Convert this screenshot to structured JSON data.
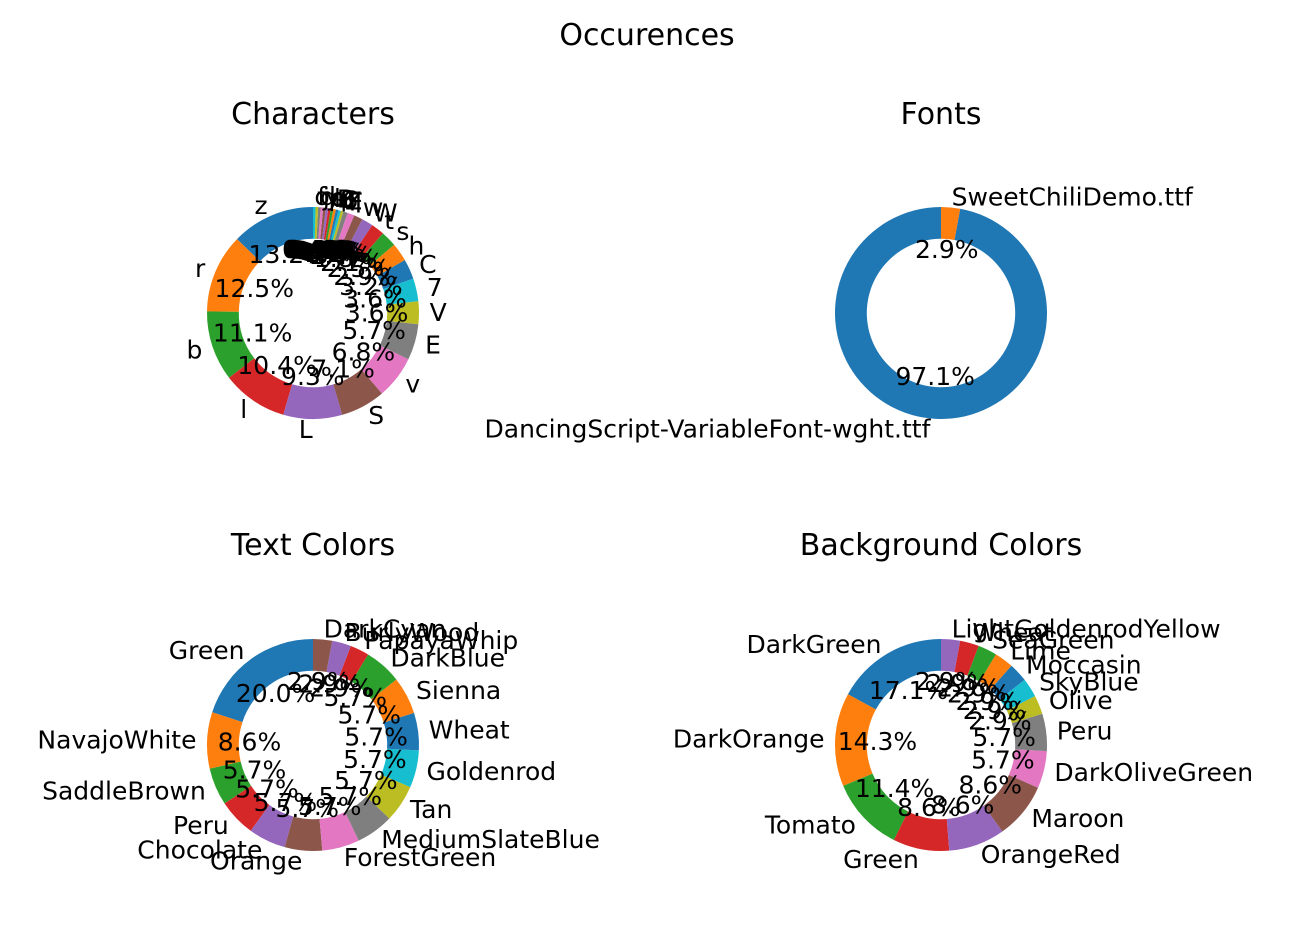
{
  "title": "Occurences",
  "chart_data": [
    {
      "type": "pie",
      "title": "Characters",
      "categories": [
        "z",
        "r",
        "b",
        "l",
        "L",
        "S",
        "v",
        "E",
        "V",
        "7",
        "C",
        "h",
        "s",
        "t",
        "W",
        "w",
        "I",
        "F",
        "Z",
        "6",
        "8",
        "B",
        "k",
        "q",
        "p",
        "y",
        "j",
        "d",
        "f",
        "o"
      ],
      "values": [
        13.2,
        12.5,
        11.1,
        10.4,
        9.3,
        7.1,
        6.8,
        5.7,
        3.6,
        3.6,
        3.2,
        2.9,
        2.5,
        2.1,
        1.8,
        1.4,
        1.1,
        0.7,
        0.4,
        0.4,
        0.4,
        0.4,
        0.4,
        0.4,
        0.4,
        0.4,
        0.4,
        0.4,
        0.4,
        0.4
      ],
      "value_labels": [
        "13.2%",
        "12.5%",
        "11.1%",
        "10.4%",
        "9.3%",
        "7.1%",
        "6.8%",
        "5.7%",
        "3.6%",
        "3.6%",
        "3.2%",
        "2.9%",
        "2.5%",
        "2.1%",
        "1.8%",
        "1.4%",
        "1.1%",
        "0.7%",
        "0.4%",
        "0.4%",
        "0.4%",
        "0.4%",
        "0.4%",
        "0.4%",
        "0.4%",
        "0.4%",
        "0.4%",
        "0.4%",
        "0.4%",
        "0.4%"
      ]
    },
    {
      "type": "pie",
      "title": "Fonts",
      "categories": [
        "DancingScript-VariableFont-wght.ttf",
        "SweetChiliDemo.ttf"
      ],
      "values": [
        97.1,
        2.9
      ],
      "value_labels": [
        "97.1%",
        "2.9%"
      ]
    },
    {
      "type": "pie",
      "title": "Text Colors",
      "categories": [
        "Green",
        "NavajoWhite",
        "SaddleBrown",
        "Peru",
        "Chocolate",
        "Orange",
        "ForestGreen",
        "MediumSlateBlue",
        "Tan",
        "Goldenrod",
        "Wheat",
        "Sienna",
        "DarkBlue",
        "PapayaWhip",
        "BurlyWood",
        "DarkCyan"
      ],
      "values": [
        20.0,
        8.6,
        5.7,
        5.7,
        5.7,
        5.7,
        5.7,
        5.7,
        5.7,
        5.7,
        5.7,
        5.7,
        5.7,
        2.9,
        2.9,
        2.9
      ],
      "value_labels": [
        "20.0%",
        "8.6%",
        "5.7%",
        "5.7%",
        "5.7%",
        "5.7%",
        "5.7%",
        "5.7%",
        "5.7%",
        "5.7%",
        "5.7%",
        "5.7%",
        "5.7%",
        "2.9%",
        "2.9%",
        "2.9%"
      ]
    },
    {
      "type": "pie",
      "title": "Background Colors",
      "categories": [
        "DarkGreen",
        "DarkOrange",
        "Tomato",
        "Green",
        "OrangeRed",
        "Maroon",
        "DarkOliveGreen",
        "Peru",
        "Olive",
        "SkyBlue",
        "Moccasin",
        "Lime",
        "SeaGreen",
        "Wheat",
        "LightGoldenrodYellow"
      ],
      "values": [
        17.1,
        14.3,
        11.4,
        8.6,
        8.6,
        8.6,
        5.7,
        5.7,
        2.9,
        2.9,
        2.9,
        2.9,
        2.9,
        2.9,
        2.9
      ],
      "value_labels": [
        "17.1%",
        "14.3%",
        "11.4%",
        "8.6%",
        "8.6%",
        "8.6%",
        "5.7%",
        "5.7%",
        "2.9%",
        "2.9%",
        "2.9%",
        "2.9%",
        "2.9%",
        "2.9%",
        "2.9%"
      ]
    }
  ],
  "colors": [
    "#1f77b4",
    "#ff7f0e",
    "#2ca02c",
    "#d62728",
    "#9467bd",
    "#8c564b",
    "#e377c2",
    "#7f7f7f",
    "#bcbd22",
    "#17becf"
  ]
}
